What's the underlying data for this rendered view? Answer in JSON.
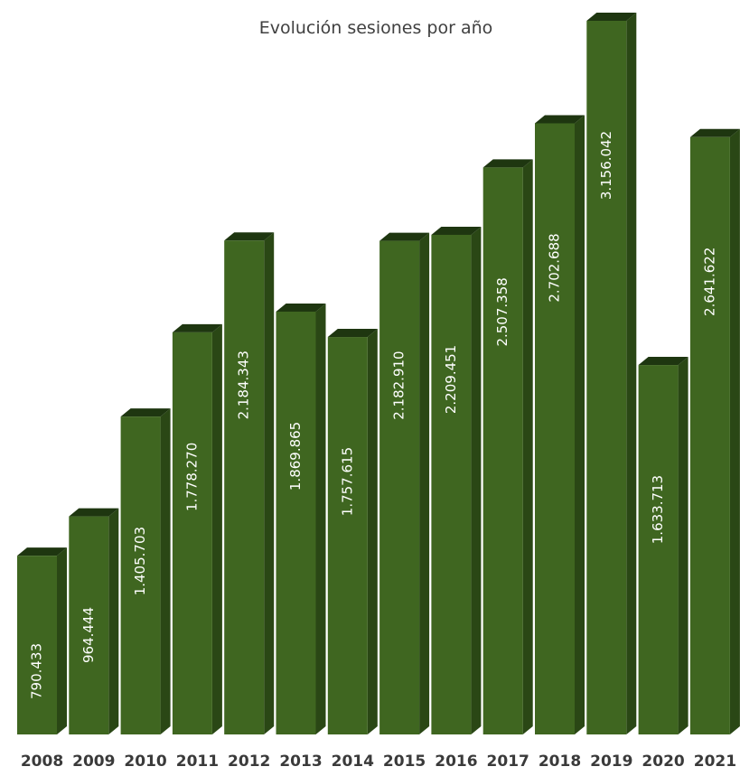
{
  "chart_data": {
    "type": "bar",
    "title": "Evolución sesiones por año",
    "xlabel": "",
    "ylabel": "",
    "ylim": [
      0,
      3156042
    ],
    "grid": false,
    "legend": "none",
    "categories": [
      "2008",
      "2009",
      "2010",
      "2011",
      "2012",
      "2013",
      "2014",
      "2015",
      "2016",
      "2017",
      "2018",
      "2019",
      "2020",
      "2021"
    ],
    "values": [
      790433,
      964444,
      1405703,
      1778270,
      2184343,
      1869865,
      1757615,
      2182910,
      2209451,
      2507358,
      2702688,
      3156042,
      1633713,
      2641622
    ],
    "value_labels": [
      "790.433",
      "964.444",
      "1.405.703",
      "1.778.270",
      "2.184.343",
      "1.869.865",
      "1.757.615",
      "2.182.910",
      "2.209.451",
      "2.507.358",
      "2.702.688",
      "3.156.042",
      "1.633.713",
      "2.641.622"
    ],
    "colors": {
      "bar_front": "#3f6620",
      "bar_side": "#2a4715",
      "bar_top": "#1e3610",
      "value_label": "#ffffff",
      "title": "#404040",
      "tick": "#3a3a3a"
    }
  }
}
